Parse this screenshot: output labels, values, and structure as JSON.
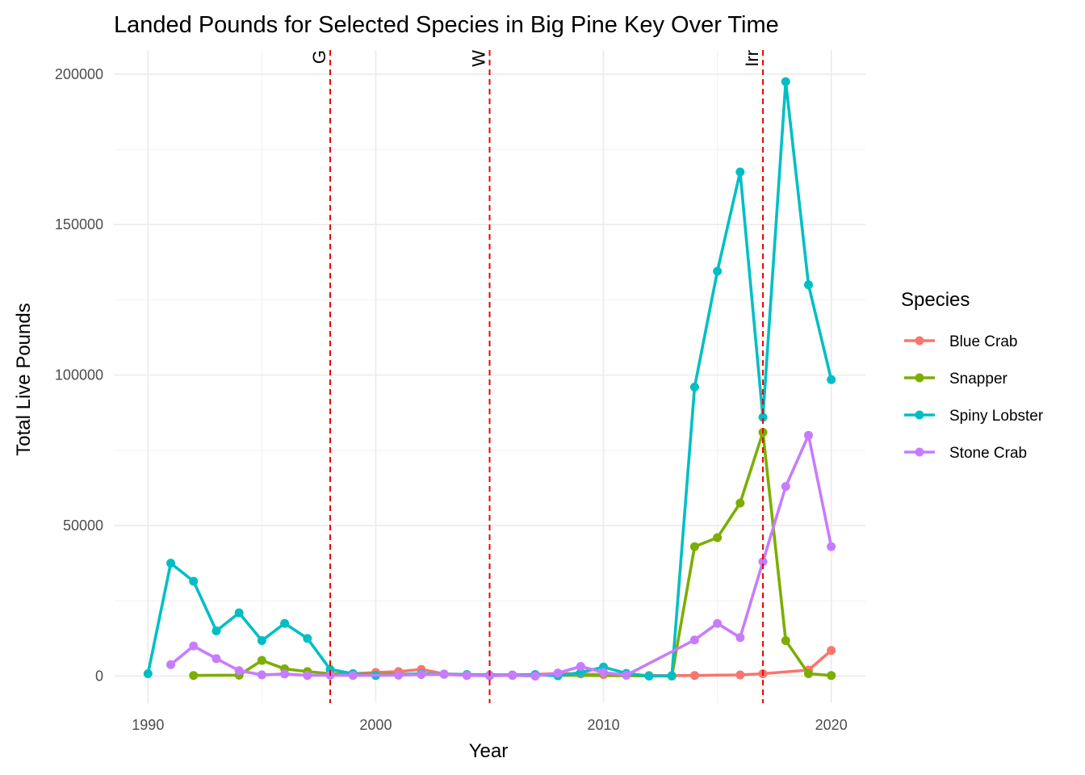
{
  "chart_data": {
    "type": "line",
    "title": "Landed Pounds for Selected Species in Big Pine Key Over Time",
    "xlabel": "Year",
    "ylabel": "Total Live Pounds",
    "xlim": [
      1988.5,
      2021.5
    ],
    "ylim": [
      -9000,
      208000
    ],
    "x_ticks": [
      1990,
      2000,
      2010,
      2020
    ],
    "y_ticks": [
      0,
      50000,
      100000,
      150000,
      200000
    ],
    "x_tick_labels": [
      "1990",
      "2000",
      "2010",
      "2020"
    ],
    "y_tick_labels": [
      "0",
      "50000",
      "100000",
      "150000",
      "200000"
    ],
    "grid": true,
    "legend": {
      "title": "Species",
      "position": "right"
    },
    "vlines": [
      {
        "x": 1998,
        "label": "G",
        "color": "#ee0000"
      },
      {
        "x": 2005,
        "label": "W",
        "color": "#ee0000"
      },
      {
        "x": 2017,
        "label": "Irr",
        "color": "#ee0000"
      }
    ],
    "series": [
      {
        "name": "Blue Crab",
        "color": "#F8766D",
        "points": [
          [
            1999,
            800
          ],
          [
            2000,
            1200
          ],
          [
            2001,
            1500
          ],
          [
            2002,
            2200
          ],
          [
            2003,
            700
          ],
          [
            2004,
            500
          ],
          [
            2005,
            300
          ],
          [
            2006,
            400
          ],
          [
            2007,
            500
          ],
          [
            2008,
            900
          ],
          [
            2009,
            700
          ],
          [
            2010,
            500
          ],
          [
            2011,
            300
          ],
          [
            2012,
            200
          ],
          [
            2013,
            150
          ],
          [
            2014,
            200
          ],
          [
            2016,
            400
          ],
          [
            2017,
            800
          ],
          [
            2019,
            2000
          ],
          [
            2020,
            8500
          ]
        ]
      },
      {
        "name": "Snapper",
        "color": "#7CAE00",
        "points": [
          [
            1992,
            200
          ],
          [
            1994,
            300
          ],
          [
            1995,
            5200
          ],
          [
            1996,
            2400
          ],
          [
            1997,
            1500
          ],
          [
            1998,
            800
          ],
          [
            2013,
            0
          ],
          [
            2014,
            43000
          ],
          [
            2015,
            46000
          ],
          [
            2016,
            57500
          ],
          [
            2017,
            81000
          ],
          [
            2018,
            11800
          ],
          [
            2019,
            800
          ],
          [
            2020,
            200
          ]
        ]
      },
      {
        "name": "Spiny Lobster",
        "color": "#00BFC4",
        "points": [
          [
            1990,
            800
          ],
          [
            1991,
            37500
          ],
          [
            1992,
            31500
          ],
          [
            1993,
            15000
          ],
          [
            1994,
            21000
          ],
          [
            1995,
            11800
          ],
          [
            1996,
            17500
          ],
          [
            1997,
            12500
          ],
          [
            1998,
            2200
          ],
          [
            1999,
            800
          ],
          [
            2000,
            200
          ],
          [
            2002,
            800
          ],
          [
            2003,
            600
          ],
          [
            2004,
            500
          ],
          [
            2005,
            200
          ],
          [
            2006,
            300
          ],
          [
            2007,
            500
          ],
          [
            2008,
            100
          ],
          [
            2009,
            1200
          ],
          [
            2010,
            3000
          ],
          [
            2011,
            900
          ],
          [
            2012,
            0
          ],
          [
            2013,
            100
          ],
          [
            2014,
            96000
          ],
          [
            2015,
            134500
          ],
          [
            2016,
            167500
          ],
          [
            2017,
            86000
          ],
          [
            2018,
            197500
          ],
          [
            2019,
            130000
          ],
          [
            2020,
            98500
          ]
        ]
      },
      {
        "name": "Stone Crab",
        "color": "#C77CFF",
        "points": [
          [
            1991,
            3800
          ],
          [
            1992,
            10000
          ],
          [
            1993,
            5800
          ],
          [
            1994,
            1800
          ],
          [
            1995,
            400
          ],
          [
            1996,
            700
          ],
          [
            1997,
            200
          ],
          [
            1998,
            300
          ],
          [
            1999,
            200
          ],
          [
            2001,
            300
          ],
          [
            2002,
            500
          ],
          [
            2003,
            600
          ],
          [
            2004,
            200
          ],
          [
            2005,
            100
          ],
          [
            2006,
            200
          ],
          [
            2007,
            0
          ],
          [
            2008,
            1000
          ],
          [
            2009,
            3200
          ],
          [
            2010,
            1200
          ],
          [
            2011,
            300
          ],
          [
            2014,
            12000
          ],
          [
            2015,
            17500
          ],
          [
            2016,
            12800
          ],
          [
            2017,
            38000
          ],
          [
            2018,
            63000
          ],
          [
            2019,
            80000
          ],
          [
            2020,
            43000
          ]
        ]
      }
    ]
  }
}
